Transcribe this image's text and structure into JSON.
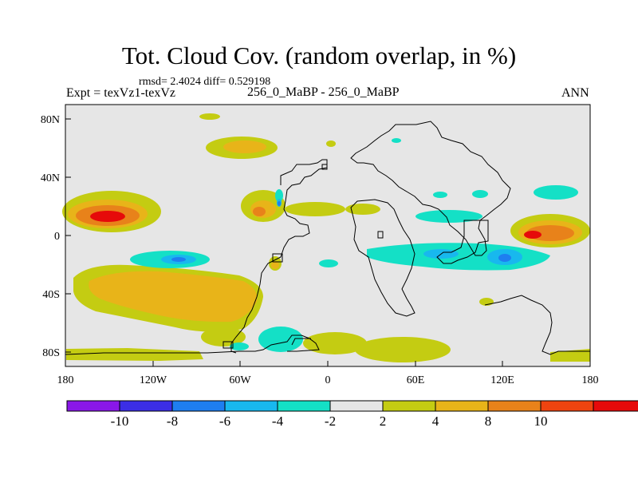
{
  "title": "Tot. Cloud Cov. (random overlap, in %)",
  "stats": "rmsd= 2.4024 diff= 0.529198",
  "experiment": "Expt = texVz1-texVz",
  "center_label": "256_0_MaBP - 256_0_MaBP",
  "season": "ANN",
  "map": {
    "projection": "cylindrical equidistant",
    "lon_range": [
      -180,
      180
    ],
    "lat_range": [
      -90,
      90
    ],
    "background_color": "#e6e6e6",
    "x_ticks": [
      "180",
      "120W",
      "60W",
      "0",
      "60E",
      "120E",
      "180"
    ],
    "y_ticks": [
      "80N",
      "40N",
      "0",
      "40S",
      "80S"
    ]
  },
  "colorbar": {
    "colors": [
      "#8a17e8",
      "#3b2ee6",
      "#1e7ef0",
      "#18b8ee",
      "#14e0c6",
      "#e6e6e6",
      "#c4cc12",
      "#e8b419",
      "#e8821a",
      "#ee4410",
      "#e60a0a"
    ],
    "labels": [
      "-10",
      "-8",
      "-6",
      "-4",
      "-2",
      "2",
      "4",
      "8",
      "10"
    ]
  },
  "colors": {
    "small_positive": "#c4cc12",
    "moderate_positive": "#e8b419",
    "large_positive": "#e8821a",
    "very_large_positive": "#ee4410",
    "extreme_positive": "#e60a0a",
    "small_negative": "#14e0c6",
    "moderate_negative": "#18b8ee",
    "large_negative": "#1e7ef0",
    "coastline": "#000000"
  }
}
